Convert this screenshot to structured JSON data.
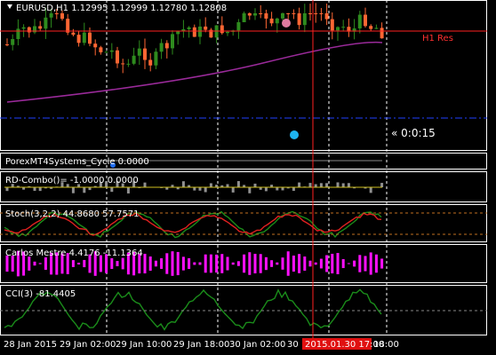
{
  "header": {
    "symbol_info": "EURUSD,H1  1.12995 1.12999 1.12780 1.12808"
  },
  "main_pane": {
    "resistance_label": "H1 Res",
    "timer": "« 0:0:15"
  },
  "indicators": [
    "PorexMT4Systems_Cycle 0.0000",
    "RD-Combo()= -1.0000 0.0000",
    "Stoch(3,2,2) 44.8680 57.7571",
    "Carlos Mestre 4.4176 -11.1364",
    "CCI(3) -81.4405"
  ],
  "time_axis": [
    "28 Jan 2015",
    "29 Jan 02:00",
    "29 Jan 10:00",
    "29 Jan 18:00",
    "30 Jan 02:00",
    "30",
    "18:00"
  ],
  "crosshair_time": "2015.01.30 17:00"
}
